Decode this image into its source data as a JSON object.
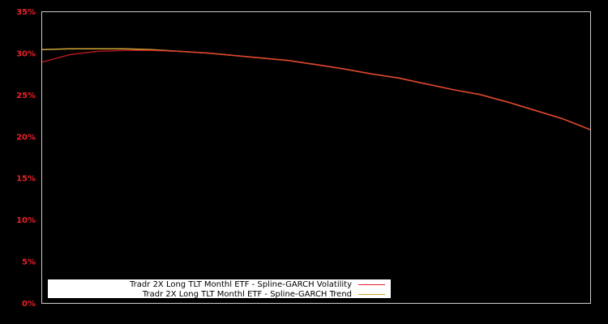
{
  "chart_data": {
    "type": "line",
    "title": "",
    "xlabel": "",
    "ylabel": "",
    "ylim": [
      0,
      35
    ],
    "y_ticks": [
      "0%",
      "5%",
      "10%",
      "15%",
      "20%",
      "25%",
      "30%",
      "35%"
    ],
    "grid": false,
    "legend_position": "lower left",
    "x": [
      0,
      5,
      10,
      15,
      20,
      25,
      30,
      35,
      40,
      45,
      50,
      55,
      60,
      65,
      70,
      75,
      80,
      85,
      90,
      95,
      100
    ],
    "series": [
      {
        "name": "Tradr 2X Long TLT Monthl ETF - Spline-GARCH Volatility",
        "color": "#e8202a",
        "values": [
          28.9,
          29.8,
          30.2,
          30.3,
          30.3,
          30.2,
          30.0,
          29.7,
          29.4,
          29.1,
          28.6,
          28.1,
          27.5,
          27.0,
          26.3,
          25.6,
          25.0,
          24.1,
          23.1,
          22.1,
          20.8
        ]
      },
      {
        "name": "Tradr 2X Long TLT Monthl ETF - Spline-GARCH Trend",
        "color": "#d4a838",
        "values": [
          30.4,
          30.5,
          30.5,
          30.5,
          30.4,
          30.2,
          30.0,
          29.7,
          29.4,
          29.1,
          28.6,
          28.1,
          27.5,
          27.0,
          26.3,
          25.6,
          25.0,
          24.1,
          23.1,
          22.1,
          20.8
        ]
      }
    ]
  },
  "legend": {
    "items": [
      {
        "label": "Tradr 2X Long TLT Monthl ETF - Spline-GARCH Volatility",
        "color": "#e8202a"
      },
      {
        "label": "Tradr 2X Long TLT Monthl ETF - Spline-GARCH Trend",
        "color": "#d4a838"
      }
    ]
  }
}
